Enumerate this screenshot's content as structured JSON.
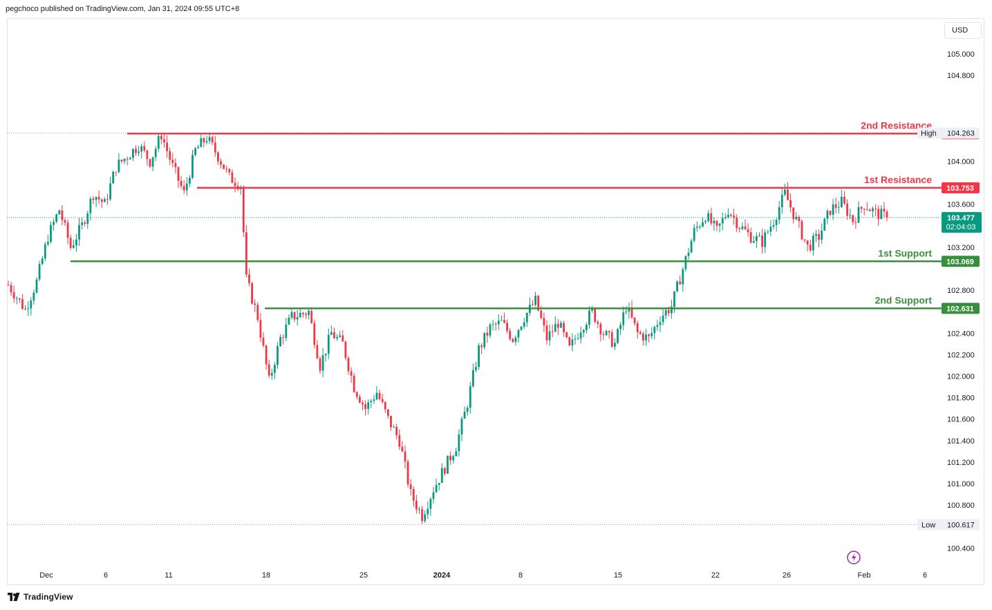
{
  "header": {
    "published": "pegchoco published on TradingView.com, Jan 31, 2024 09:55 UTC+8"
  },
  "footer": {
    "brand": "TradingView",
    "logo_icon": "tradingview-logo-icon"
  },
  "price_scale": {
    "currency": "USD"
  },
  "colors": {
    "up": "#089981",
    "down": "#f23645",
    "resistance": "#f23645",
    "support": "#388e3c",
    "last_price": "#089981"
  },
  "chart_data": {
    "type": "candlestick",
    "xlabel": "",
    "ylabel": "",
    "ylim": [
      100.2,
      105.3
    ],
    "y_ticks": [
      100.4,
      100.8,
      101.0,
      101.2,
      101.4,
      101.6,
      101.8,
      102.0,
      102.2,
      102.4,
      102.8,
      103.2,
      103.6,
      104.0,
      104.8,
      105.0
    ],
    "x_ticks": [
      "Dec",
      "6",
      "11",
      "18",
      "25",
      "2024",
      "8",
      "15",
      "22",
      "26",
      "Feb",
      "6"
    ],
    "high": {
      "label": "High",
      "value": 104.263
    },
    "low": {
      "label": "Low",
      "value": 100.617
    },
    "last_price": {
      "value": 103.477,
      "countdown": "02:04:03"
    },
    "levels": [
      {
        "name": "2nd Resistance",
        "value": 104.258,
        "kind": "resistance"
      },
      {
        "name": "1st Resistance",
        "value": 103.753,
        "kind": "resistance"
      },
      {
        "name": "1st Support",
        "value": 103.069,
        "kind": "support"
      },
      {
        "name": "2nd Support",
        "value": 102.631,
        "kind": "support"
      }
    ],
    "close_path": [
      [
        0,
        102.85
      ],
      [
        6,
        102.62
      ],
      [
        10,
        102.88
      ],
      [
        14,
        103.3
      ],
      [
        18,
        103.55
      ],
      [
        22,
        103.2
      ],
      [
        26,
        103.4
      ],
      [
        30,
        103.7
      ],
      [
        34,
        103.6
      ],
      [
        38,
        103.95
      ],
      [
        42,
        104.05
      ],
      [
        46,
        104.15
      ],
      [
        50,
        104.0
      ],
      [
        54,
        104.25
      ],
      [
        58,
        103.95
      ],
      [
        62,
        103.7
      ],
      [
        66,
        104.1
      ],
      [
        70,
        104.22
      ],
      [
        74,
        104.05
      ],
      [
        78,
        103.85
      ],
      [
        82,
        103.78
      ],
      [
        84,
        102.9
      ],
      [
        88,
        102.55
      ],
      [
        92,
        101.95
      ],
      [
        96,
        102.35
      ],
      [
        100,
        102.55
      ],
      [
        106,
        102.6
      ],
      [
        110,
        102.1
      ],
      [
        114,
        102.4
      ],
      [
        118,
        102.3
      ],
      [
        122,
        101.9
      ],
      [
        126,
        101.7
      ],
      [
        130,
        101.85
      ],
      [
        134,
        101.6
      ],
      [
        138,
        101.4
      ],
      [
        142,
        100.9
      ],
      [
        146,
        100.7
      ],
      [
        150,
        100.95
      ],
      [
        154,
        101.15
      ],
      [
        158,
        101.35
      ],
      [
        162,
        101.75
      ],
      [
        166,
        102.25
      ],
      [
        170,
        102.45
      ],
      [
        174,
        102.5
      ],
      [
        178,
        102.35
      ],
      [
        182,
        102.55
      ],
      [
        186,
        102.7
      ],
      [
        190,
        102.35
      ],
      [
        194,
        102.5
      ],
      [
        198,
        102.25
      ],
      [
        202,
        102.45
      ],
      [
        206,
        102.6
      ],
      [
        210,
        102.4
      ],
      [
        214,
        102.3
      ],
      [
        218,
        102.65
      ],
      [
        222,
        102.4
      ],
      [
        226,
        102.35
      ],
      [
        230,
        102.55
      ],
      [
        234,
        102.65
      ],
      [
        238,
        103.0
      ],
      [
        242,
        103.35
      ],
      [
        246,
        103.5
      ],
      [
        250,
        103.35
      ],
      [
        254,
        103.55
      ],
      [
        258,
        103.4
      ],
      [
        262,
        103.3
      ],
      [
        266,
        103.25
      ],
      [
        270,
        103.45
      ],
      [
        274,
        103.7
      ],
      [
        278,
        103.45
      ],
      [
        282,
        103.2
      ],
      [
        286,
        103.3
      ],
      [
        290,
        103.55
      ],
      [
        294,
        103.62
      ],
      [
        298,
        103.45
      ],
      [
        302,
        103.6
      ],
      [
        306,
        103.52
      ],
      [
        310,
        103.48
      ]
    ]
  }
}
